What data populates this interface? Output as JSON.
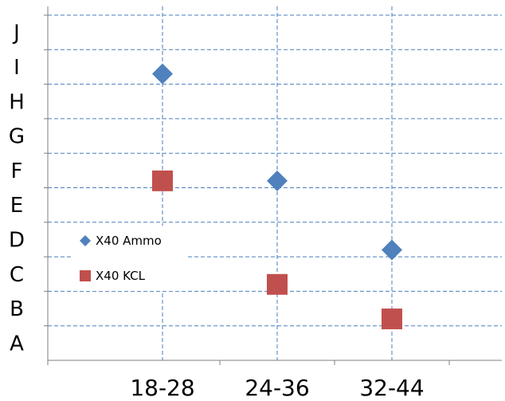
{
  "chart_data": {
    "type": "scatter",
    "title": "",
    "xlabel": "",
    "ylabel": "",
    "categories": [
      "18-28",
      "24-36",
      "32-44"
    ],
    "y_categories": [
      "A",
      "B",
      "C",
      "D",
      "E",
      "F",
      "G",
      "H",
      "I",
      "J"
    ],
    "grid": true,
    "legend_position": "left-middle",
    "series": [
      {
        "name": "X40 Ammo",
        "marker": "diamond",
        "color": "#4F81BD",
        "values": [
          8.3,
          5.2,
          3.2
        ]
      },
      {
        "name": "X40 KCL",
        "marker": "square",
        "color": "#C0504D",
        "values": [
          5.2,
          2.2,
          1.2
        ]
      }
    ]
  }
}
